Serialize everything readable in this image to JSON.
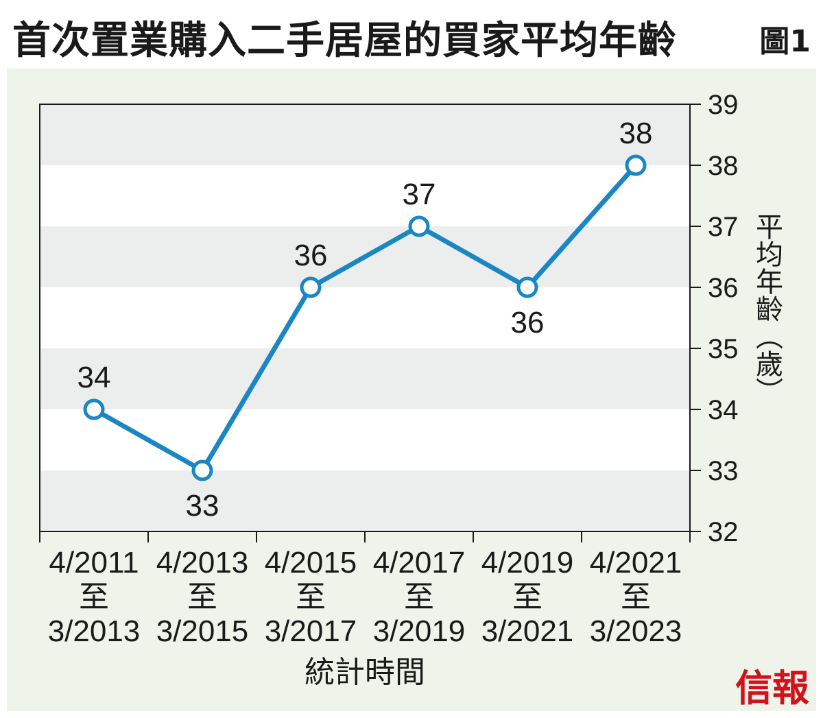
{
  "title": "首次置業購入二手居屋的買家平均年齡",
  "figure_label": "圖1",
  "brand": "信報",
  "colors": {
    "line": "#1a86c4",
    "band": "#eceeed",
    "panel_bg": "#eef4ea",
    "brand": "#d0121b"
  },
  "chart_data": {
    "type": "line",
    "categories": [
      [
        "4/2011",
        "至",
        "3/2013"
      ],
      [
        "4/2013",
        "至",
        "3/2015"
      ],
      [
        "4/2015",
        "至",
        "3/2017"
      ],
      [
        "4/2017",
        "至",
        "3/2019"
      ],
      [
        "4/2019",
        "至",
        "3/2021"
      ],
      [
        "4/2021",
        "至",
        "3/2023"
      ]
    ],
    "values": [
      34,
      33,
      36,
      37,
      36,
      38
    ],
    "data_labels": [
      "34",
      "33",
      "36",
      "37",
      "36",
      "38"
    ],
    "xlabel": "統計時間",
    "ylabel": [
      "平",
      "均",
      "年",
      "齡",
      "︵",
      "歲",
      "︶"
    ],
    "ylim": [
      32,
      39
    ],
    "yticks": [
      32,
      33,
      34,
      35,
      36,
      37,
      38,
      39
    ],
    "y_axis_side": "right",
    "grid": "alternating horizontal bands"
  }
}
